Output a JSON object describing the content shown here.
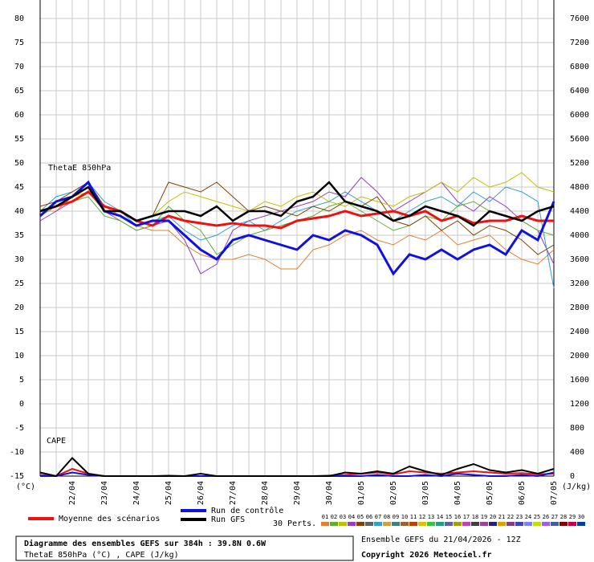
{
  "chart_data": {
    "type": "line",
    "title": "Diagramme des ensembles GEFS sur 384h : 39.8N 0.6W",
    "subtitle": "ThetaE 850hPa (°C) , CAPE (J/kg)",
    "run_info": "Ensemble GEFS du 21/04/2026 - 12Z",
    "copyright": "Copyright 2026 Meteociel.fr",
    "annotations": [
      "ThetaE 850hPa",
      "CAPE"
    ],
    "y_label": "(°C)",
    "y2_label": "(J/kg)",
    "grid": true,
    "x": [
      0,
      12,
      24,
      36,
      48,
      60,
      72,
      84,
      96,
      108,
      120,
      132,
      144,
      156,
      168,
      180,
      192,
      204,
      216,
      228,
      240,
      252,
      264,
      276,
      288,
      300,
      312,
      324,
      336,
      348,
      360,
      372,
      384
    ],
    "xlim": [
      0,
      384
    ],
    "xticks": [
      {
        "value": 24,
        "label": "22/04"
      },
      {
        "value": 48,
        "label": "23/04"
      },
      {
        "value": 72,
        "label": "24/04"
      },
      {
        "value": 96,
        "label": "25/04"
      },
      {
        "value": 120,
        "label": "26/04"
      },
      {
        "value": 144,
        "label": "27/04"
      },
      {
        "value": 168,
        "label": "28/04"
      },
      {
        "value": 192,
        "label": "29/04"
      },
      {
        "value": 216,
        "label": "30/04"
      },
      {
        "value": 240,
        "label": "01/05"
      },
      {
        "value": 264,
        "label": "02/05"
      },
      {
        "value": 288,
        "label": "03/05"
      },
      {
        "value": 312,
        "label": "04/05"
      },
      {
        "value": 336,
        "label": "05/05"
      },
      {
        "value": 360,
        "label": "06/05"
      },
      {
        "value": 384,
        "label": "07/05"
      }
    ],
    "ylim": [
      -15,
      80
    ],
    "yticks": [
      -15,
      -10,
      -5,
      0,
      5,
      10,
      15,
      20,
      25,
      30,
      35,
      40,
      45,
      50,
      55,
      60,
      65,
      70,
      75,
      80
    ],
    "y2lim": [
      0,
      7600
    ],
    "y2ticks": [
      0,
      400,
      800,
      1200,
      1600,
      2000,
      2400,
      2800,
      3200,
      3600,
      4000,
      4400,
      4800,
      5200,
      5600,
      6000,
      6400,
      6800,
      7200,
      7600
    ],
    "series": [
      {
        "name": "Moyenne des scénarios",
        "color": "#ee1111",
        "values": [
          40,
          41,
          42,
          44,
          41,
          40,
          38,
          37,
          39,
          38,
          37.5,
          37,
          37.5,
          37,
          37,
          36.5,
          38,
          38.5,
          39,
          40,
          39,
          39.5,
          40,
          39,
          40,
          38,
          39,
          37.5,
          38,
          38,
          39,
          38,
          38
        ]
      },
      {
        "name": "Run de contrôle",
        "color": "#1111dd",
        "values": [
          39,
          42,
          43,
          46,
          40,
          39,
          37,
          38,
          38,
          35,
          32,
          30,
          34,
          35,
          34,
          33,
          32,
          35,
          34,
          36,
          35,
          33,
          27,
          31,
          30,
          32,
          30,
          32,
          33,
          31,
          36,
          34,
          42
        ]
      },
      {
        "name": "Run GFS",
        "color": "#000000",
        "values": [
          40,
          41,
          43,
          45,
          40,
          40,
          38,
          39,
          40,
          40,
          39,
          41,
          38,
          40,
          40,
          39,
          42,
          43,
          46,
          42,
          41,
          40,
          38,
          39,
          41,
          40,
          39,
          37,
          40,
          39,
          38,
          40,
          41
        ]
      }
    ],
    "cape_series": [
      {
        "color": "#ee1111",
        "axis": "y2",
        "values": [
          20,
          0,
          120,
          40,
          0,
          0,
          0,
          0,
          10,
          0,
          0,
          0,
          0,
          0,
          0,
          0,
          0,
          0,
          10,
          20,
          40,
          60,
          30,
          80,
          60,
          40,
          60,
          80,
          60,
          40,
          50,
          30,
          40
        ]
      },
      {
        "color": "#1111dd",
        "axis": "y2",
        "values": [
          0,
          0,
          60,
          20,
          0,
          0,
          0,
          0,
          0,
          0,
          0,
          0,
          0,
          0,
          0,
          0,
          0,
          0,
          0,
          0,
          0,
          20,
          0,
          0,
          20,
          0,
          40,
          20,
          0,
          0,
          20,
          0,
          60
        ]
      },
      {
        "color": "#000000",
        "axis": "y2",
        "values": [
          60,
          0,
          300,
          40,
          0,
          0,
          0,
          0,
          0,
          0,
          40,
          0,
          0,
          0,
          0,
          0,
          0,
          0,
          0,
          60,
          40,
          80,
          40,
          160,
          80,
          20,
          120,
          200,
          100,
          60,
          100,
          40,
          120
        ]
      }
    ],
    "perturbations": [
      {
        "color": "#e08030",
        "values": [
          40,
          40,
          43,
          45,
          41,
          39,
          37,
          36,
          36,
          33,
          31,
          30,
          30,
          31,
          30,
          28,
          28,
          32,
          33,
          35,
          36,
          34,
          33,
          35,
          34,
          36,
          33,
          34,
          35,
          32,
          30,
          29,
          32
        ]
      },
      {
        "color": "#9040c0",
        "values": [
          38,
          40,
          42,
          44,
          40,
          38,
          36,
          37,
          38,
          34,
          27,
          29,
          36,
          38,
          39,
          40,
          41,
          42,
          44,
          43,
          47,
          44,
          40,
          42,
          44,
          46,
          42,
          40,
          43,
          41,
          38,
          36,
          29
        ]
      },
      {
        "color": "#30a0d0",
        "values": [
          40,
          43,
          44,
          46,
          42,
          40,
          37,
          38,
          39,
          36,
          34,
          35,
          37,
          38,
          36,
          38,
          40,
          41,
          42,
          44,
          42,
          40,
          38,
          40,
          42,
          43,
          41,
          44,
          42,
          45,
          44,
          42,
          24
        ]
      },
      {
        "color": "#60b030",
        "values": [
          39,
          41,
          42,
          43,
          39,
          38,
          36,
          37,
          41,
          38,
          36,
          31,
          33,
          35,
          36,
          37,
          38,
          39,
          41,
          42,
          40,
          38,
          36,
          37,
          39,
          38,
          41,
          42,
          40,
          39,
          38,
          36,
          35
        ]
      },
      {
        "color": "#c0c000",
        "values": [
          40,
          41,
          43,
          44,
          41,
          40,
          38,
          39,
          42,
          44,
          43,
          42,
          41,
          40,
          42,
          41,
          43,
          44,
          42,
          41,
          43,
          42,
          41,
          43,
          44,
          46,
          44,
          47,
          45,
          46,
          48,
          45,
          44
        ]
      },
      {
        "color": "#804000",
        "values": [
          41,
          42,
          44,
          46,
          41,
          40,
          38,
          39,
          46,
          45,
          44,
          46,
          43,
          40,
          41,
          40,
          39,
          41,
          40,
          42,
          41,
          43,
          38,
          37,
          39,
          36,
          38,
          35,
          37,
          36,
          34,
          31,
          33
        ]
      }
    ],
    "legend_perts": "30 Perts.",
    "pert_labels": [
      "01",
      "02",
      "03",
      "04",
      "05",
      "06",
      "07",
      "08",
      "09",
      "10",
      "11",
      "12",
      "13",
      "14",
      "15",
      "16",
      "17",
      "18",
      "19",
      "20",
      "21",
      "22",
      "23",
      "24",
      "25",
      "26",
      "27",
      "28",
      "29",
      "30"
    ],
    "pert_colors": [
      "#e08030",
      "#60b030",
      "#c0c000",
      "#9040c0",
      "#804000",
      "#606060",
      "#30a0d0",
      "#d0a040",
      "#408080",
      "#a06030",
      "#c04000",
      "#e0c000",
      "#40c040",
      "#20a080",
      "#6060a0",
      "#a0a000",
      "#c040c0",
      "#404040",
      "#a040a0",
      "#202080",
      "#e0a000",
      "#804080",
      "#4040c0",
      "#8080ff",
      "#c0e000",
      "#a060e0",
      "#4060a0",
      "#800000",
      "#c00040",
      "#0040a0"
    ]
  }
}
